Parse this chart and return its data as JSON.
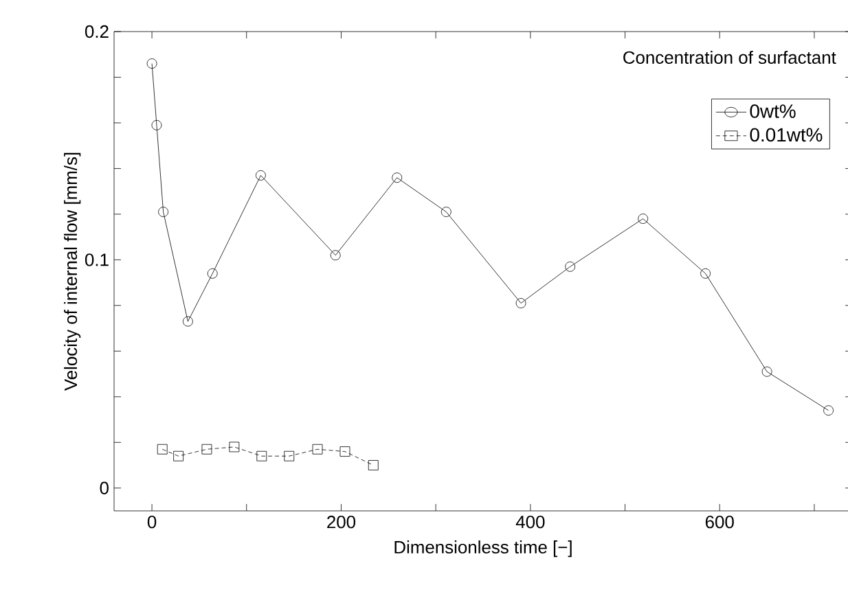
{
  "chart_data": {
    "type": "line",
    "xlabel": "Dimensionless time   [−]",
    "ylabel": "Velocity of internal flow [mm/s]",
    "legend_title": "Concentration of surfactant",
    "xlim": [
      -40,
      740
    ],
    "ylim": [
      -0.01,
      0.2
    ],
    "xticks": [
      0,
      200,
      400,
      600,
      {
        "value": 100,
        "label": null
      },
      {
        "value": 300,
        "label": null
      },
      {
        "value": 500,
        "label": null
      },
      {
        "value": 700,
        "label": null
      }
    ],
    "yticks": [
      0,
      0.1,
      0.2,
      {
        "value": 0.02,
        "label": null
      },
      {
        "value": 0.04,
        "label": null
      },
      {
        "value": 0.06,
        "label": null
      },
      {
        "value": 0.08,
        "label": null
      },
      {
        "value": 0.12,
        "label": null
      },
      {
        "value": 0.14,
        "label": null
      },
      {
        "value": 0.16,
        "label": null
      },
      {
        "value": 0.18,
        "label": null
      }
    ],
    "legend": "top right",
    "grid": false,
    "series": [
      {
        "name": "0wt%",
        "color": "#000000",
        "marker": "circle",
        "line_style": "solid",
        "x": [
          0,
          5,
          12,
          38,
          64,
          115,
          194,
          259,
          311,
          390,
          442,
          519,
          585,
          650,
          715
        ],
        "values": [
          0.186,
          0.159,
          0.121,
          0.073,
          0.094,
          0.137,
          0.102,
          0.136,
          0.121,
          0.081,
          0.097,
          0.118,
          0.094,
          0.051,
          0.034
        ]
      },
      {
        "name": "0.01wt%",
        "color": "#000000",
        "marker": "square",
        "line_style": "dashed",
        "x": [
          11,
          28,
          58,
          87,
          116,
          145,
          175,
          204,
          234
        ],
        "values": [
          0.017,
          0.014,
          0.017,
          0.018,
          0.014,
          0.014,
          0.017,
          0.016,
          0.01
        ]
      }
    ]
  }
}
